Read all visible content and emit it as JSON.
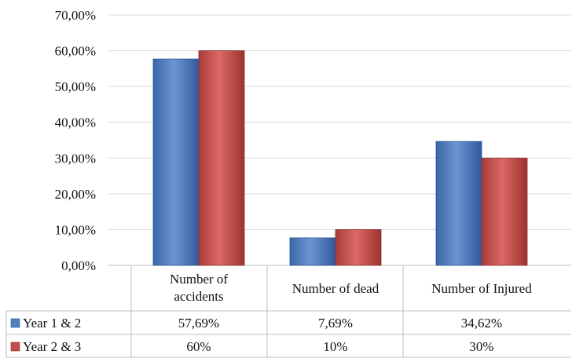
{
  "chart_data": {
    "type": "bar",
    "categories": [
      [
        "Number of",
        "accidents"
      ],
      [
        "Number of dead"
      ],
      [
        "Number of Injured"
      ]
    ],
    "series": [
      {
        "name": "Year 1 & 2",
        "values": [
          57.69,
          7.69,
          34.62
        ],
        "labels": [
          "57,69%",
          "7,69%",
          "34,62%"
        ],
        "color": "#4f81bd"
      },
      {
        "name": "Year 2 & 3",
        "values": [
          60,
          10,
          30
        ],
        "labels": [
          "60%",
          "10%",
          "30%"
        ],
        "color": "#c0504d"
      }
    ],
    "y_ticks": [
      "0,00%",
      "10,00%",
      "20,00%",
      "30,00%",
      "40,00%",
      "50,00%",
      "60,00%",
      "70,00%"
    ],
    "ylim": [
      0,
      70
    ],
    "grid": true,
    "legend": "data-table-left"
  }
}
